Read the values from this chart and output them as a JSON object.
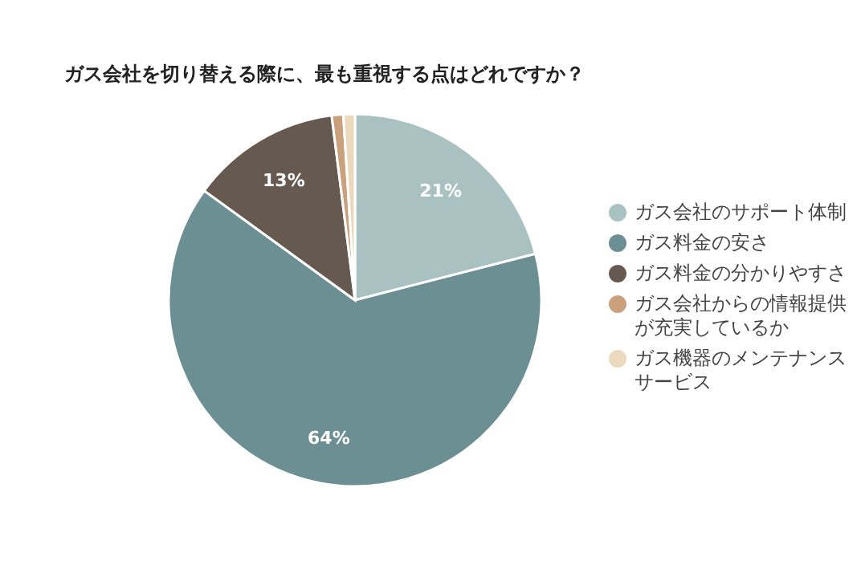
{
  "chart_data": {
    "type": "pie",
    "title": "ガス会社を切り替える際に、最も重視する点はどれですか？",
    "categories": [
      "ガス会社のサポート体制",
      "ガス料金の安さ",
      "ガス料金の分かりやすさ",
      "ガス会社からの情報提供が充実しているか",
      "ガス機器のメンテナンスサービス"
    ],
    "values": [
      21,
      64,
      13,
      1,
      1
    ],
    "colors": [
      "#a9c1c1",
      "#6b8f93",
      "#665a50",
      "#c9a17d",
      "#ead9bd"
    ],
    "value_labels": [
      "21%",
      "64%",
      "13%",
      null,
      null
    ],
    "legend": "right"
  }
}
